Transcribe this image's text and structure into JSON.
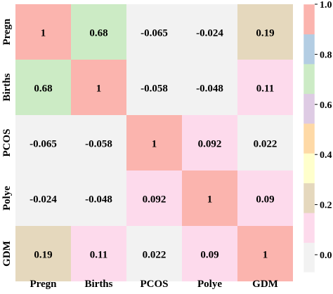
{
  "chart_data": {
    "type": "heatmap",
    "rows": [
      "Pregn",
      "Births",
      "PCOS",
      "Polye",
      "GDM"
    ],
    "columns": [
      "Pregn",
      "Births",
      "PCOS",
      "Polye",
      "GDM"
    ],
    "values": [
      [
        1,
        0.68,
        -0.065,
        -0.024,
        0.19
      ],
      [
        0.68,
        1,
        -0.058,
        -0.048,
        0.11
      ],
      [
        -0.065,
        -0.058,
        1,
        0.092,
        0.022
      ],
      [
        -0.024,
        -0.048,
        0.092,
        1,
        0.09
      ],
      [
        0.19,
        0.11,
        0.022,
        0.09,
        1
      ]
    ],
    "cell_labels": [
      [
        "1",
        "0.68",
        "-0.065",
        "-0.024",
        "0.19"
      ],
      [
        "0.68",
        "1",
        "-0.058",
        "-0.048",
        "0.11"
      ],
      [
        "-0.065",
        "-0.058",
        "1",
        "0.092",
        "0.022"
      ],
      [
        "-0.024",
        "-0.048",
        "0.092",
        "1",
        "0.09"
      ],
      [
        "0.19",
        "0.11",
        "0.022",
        "0.09",
        "1"
      ]
    ],
    "colorbar": {
      "range": [
        -0.07,
        1.0
      ],
      "ticks": [
        0.0,
        0.2,
        0.4,
        0.6,
        0.8,
        1.0
      ],
      "tick_labels": [
        "0.0",
        "0.2",
        "0.4",
        "0.6",
        "0.8",
        "1.0"
      ],
      "colormap": "Pastel1 (reversed)",
      "bins": [
        "#f2f2f2",
        "#fddaec",
        "#e5d8bd",
        "#ffffcc",
        "#fed9a6",
        "#decbe4",
        "#ccebc5",
        "#b3cde3",
        "#fbb4ae"
      ],
      "position": "right"
    },
    "grid": false
  }
}
